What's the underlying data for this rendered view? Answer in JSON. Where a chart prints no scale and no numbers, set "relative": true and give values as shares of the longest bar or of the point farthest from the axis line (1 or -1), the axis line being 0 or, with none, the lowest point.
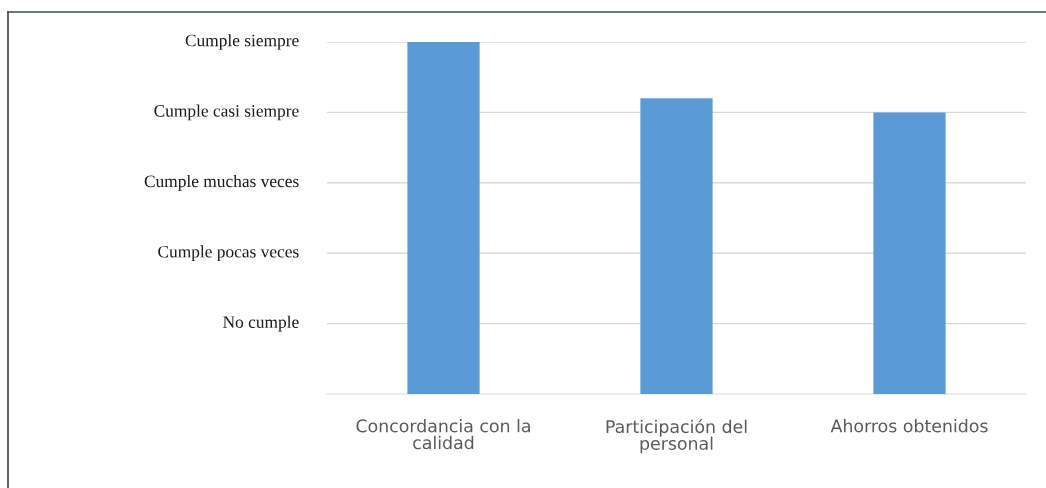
{
  "chart_data": {
    "type": "bar",
    "relative": true,
    "categories": [
      "Concordancia con la calidad",
      "Participación del personal",
      "Ahorros obtenidos"
    ],
    "values": [
      1,
      0.84,
      0.8
    ],
    "color": "#5b9bd5",
    "annotations": [
      "Cumple siempre",
      "Cumple casi siempre",
      "Cumple muchas veces",
      "Cumple pocas veces",
      "No cumple"
    ],
    "grid": "y"
  }
}
